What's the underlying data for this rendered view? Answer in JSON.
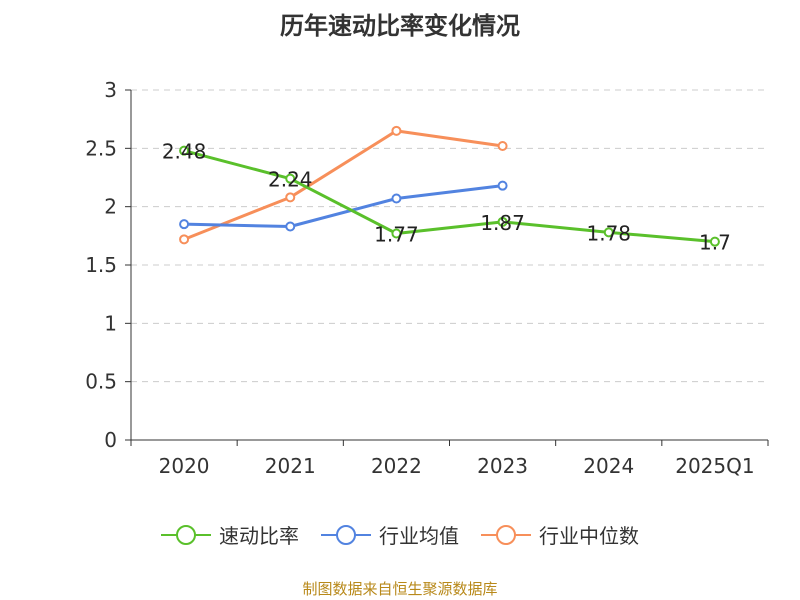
{
  "chart_data": {
    "type": "line",
    "title": "历年速动比率变化情况",
    "categories": [
      "2020",
      "2021",
      "2022",
      "2023",
      "2024",
      "2025Q1"
    ],
    "y_ticks": [
      "0",
      "0.5",
      "1",
      "1.5",
      "2",
      "2.5",
      "3"
    ],
    "ylim": [
      0,
      3
    ],
    "grid": true,
    "legend_position": "bottom",
    "series": [
      {
        "name": "速动比率",
        "color": "#5ac02b",
        "values": [
          2.48,
          2.24,
          1.77,
          1.87,
          1.78,
          1.7
        ],
        "labels": [
          "2.48",
          "2.24",
          "1.77",
          "1.87",
          "1.78",
          "1.7"
        ]
      },
      {
        "name": "行业均值",
        "color": "#5283e0",
        "values": [
          1.85,
          1.83,
          2.07,
          2.18,
          null,
          null
        ]
      },
      {
        "name": "行业中位数",
        "color": "#f78f5a",
        "values": [
          1.72,
          2.08,
          2.65,
          2.52,
          null,
          null
        ]
      }
    ]
  },
  "source": "制图数据来自恒生聚源数据库"
}
